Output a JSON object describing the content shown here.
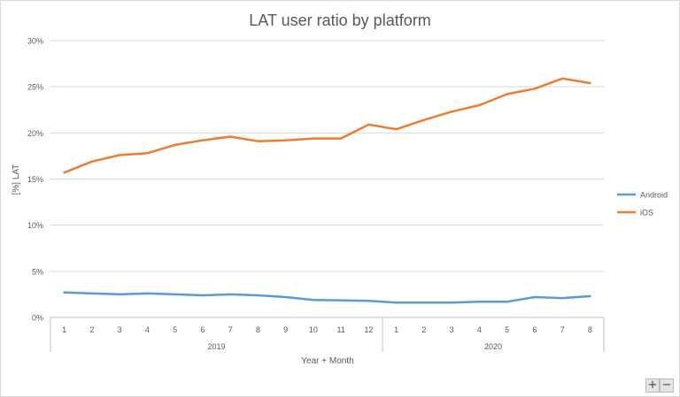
{
  "chart_data": {
    "type": "line",
    "title": "LAT user ratio by platform",
    "xlabel": "Year + Month",
    "ylabel": "[%] LAT",
    "ylim": [
      0,
      30
    ],
    "yticks": [
      "0%",
      "5%",
      "10%",
      "15%",
      "20%",
      "25%",
      "30%"
    ],
    "categories": [
      "1",
      "2",
      "3",
      "4",
      "5",
      "6",
      "7",
      "8",
      "9",
      "10",
      "11",
      "12",
      "1",
      "2",
      "3",
      "4",
      "5",
      "6",
      "7",
      "8"
    ],
    "groups": [
      {
        "label": "2019",
        "count": 12
      },
      {
        "label": "2020",
        "count": 8
      }
    ],
    "series": [
      {
        "name": "Android",
        "color": "#5b9bd5",
        "values": [
          2.7,
          2.6,
          2.5,
          2.6,
          2.5,
          2.4,
          2.5,
          2.4,
          2.2,
          1.9,
          1.85,
          1.8,
          1.6,
          1.6,
          1.6,
          1.7,
          1.7,
          2.2,
          2.1,
          2.3
        ]
      },
      {
        "name": "iOS",
        "color": "#ed7d31",
        "values": [
          15.7,
          16.9,
          17.6,
          17.8,
          18.7,
          19.2,
          19.6,
          19.1,
          19.2,
          19.4,
          19.4,
          20.9,
          20.4,
          21.4,
          22.3,
          23.0,
          24.2,
          24.8,
          25.9,
          25.4
        ]
      }
    ],
    "legend_position": "right"
  },
  "controls": {
    "zoom_in": "+",
    "zoom_out": "−"
  }
}
